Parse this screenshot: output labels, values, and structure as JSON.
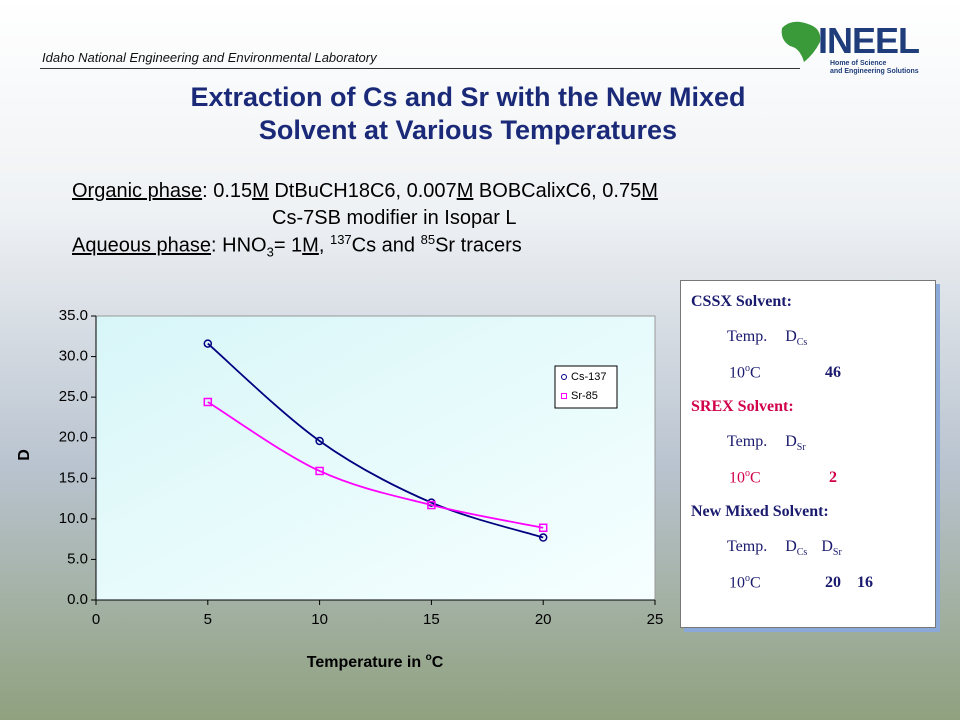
{
  "header": {
    "org": "Idaho National Engineering and Environmental Laboratory",
    "logo": "INEEL",
    "tagline": [
      "Home of Science",
      "and Engineering Solutions"
    ]
  },
  "title": [
    "Extraction of Cs and Sr with the New Mixed",
    "Solvent at Various Temperatures"
  ],
  "conditions": {
    "organic": [
      "Organic phase",
      ":  0.15",
      "M",
      " DtBuCH18C6, 0.007",
      "M",
      " BOBCalixC6, 0.75",
      "M"
    ],
    "organic2": "Cs-7SB modifier in Isopar L",
    "aqueous": [
      "Aqueous phase",
      ":  HNO",
      "3",
      "= 1",
      "M",
      ", ",
      "137",
      "Cs and ",
      "85",
      "Sr tracers"
    ]
  },
  "chart_data": {
    "type": "line",
    "x": [
      5,
      10,
      15,
      20
    ],
    "series": [
      {
        "name": "Cs-137",
        "color": "#000080",
        "values": [
          31.6,
          19.6,
          12.0,
          7.7
        ]
      },
      {
        "name": "Sr-85",
        "color": "#ff00ff",
        "values": [
          24.4,
          15.9,
          11.7,
          8.9
        ]
      }
    ],
    "xlabel": [
      "Temperature in ",
      "o",
      "C"
    ],
    "ylabel": "D",
    "xlim": [
      0,
      25
    ],
    "xticks": [
      0,
      5,
      10,
      15,
      20,
      25
    ],
    "ylim": [
      0,
      35
    ],
    "yticks": [
      {
        "value": 0,
        "label": "0.0"
      },
      {
        "value": 5,
        "label": "5.0"
      },
      {
        "value": 10,
        "label": "10.0"
      },
      {
        "value": 15,
        "label": "15.0"
      },
      {
        "value": 20,
        "label": "20.0"
      },
      {
        "value": 25,
        "label": "25.0"
      },
      {
        "value": 30,
        "label": "30.0"
      },
      {
        "value": 35,
        "label": "35.0"
      }
    ],
    "legend": "upper right"
  },
  "box": [
    {
      "heading": "CSSX Solvent:",
      "temp_label": "Temp.",
      "d": [
        [
          "D",
          "Cs"
        ]
      ],
      "temp": [
        "10",
        "o",
        "C"
      ],
      "values": [
        46
      ]
    },
    {
      "heading": "SREX Solvent:",
      "temp_label": "Temp.",
      "d": [
        [
          "D",
          "Sr"
        ]
      ],
      "temp": [
        "10",
        "o",
        "C"
      ],
      "values": [
        2
      ]
    },
    {
      "heading": "New Mixed Solvent:",
      "temp_label": "Temp.",
      "d": [
        [
          "D",
          "Cs"
        ],
        [
          "D",
          "Sr"
        ]
      ],
      "temp": [
        "10",
        "o",
        "C"
      ],
      "values": [
        20,
        16
      ]
    }
  ]
}
